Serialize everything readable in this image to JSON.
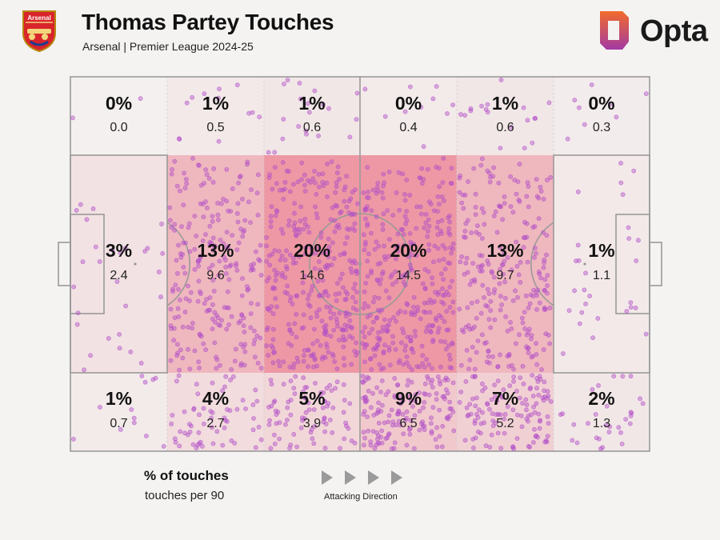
{
  "header": {
    "title": "Thomas Partey Touches",
    "subtitle": "Arsenal | Premier League 2024-25",
    "crest_text": "Arsenal",
    "brand": "Opta"
  },
  "legend": {
    "main": "% of touches",
    "sub": "touches per 90",
    "direction": "Attacking Direction"
  },
  "colors": {
    "background": "#f4f3f2",
    "pitch_line": "#9a9a9a",
    "dot": "#b24fc8",
    "heat": "#e8576a",
    "crest_red": "#d9242b",
    "brand_orange": "#f26b2b",
    "brand_purple": "#a33aa3"
  },
  "chart_data": {
    "type": "heatmap",
    "title": "Thomas Partey Touches",
    "subtitle": "Arsenal | Premier League 2024-25",
    "columns": 6,
    "rows": [
      "top-wing",
      "central",
      "bottom-wing"
    ],
    "zones": [
      [
        {
          "pct": "0%",
          "p90": "0.0"
        },
        {
          "pct": "1%",
          "p90": "0.5"
        },
        {
          "pct": "1%",
          "p90": "0.6"
        },
        {
          "pct": "0%",
          "p90": "0.4"
        },
        {
          "pct": "1%",
          "p90": "0.6"
        },
        {
          "pct": "0%",
          "p90": "0.3"
        }
      ],
      [
        {
          "pct": "3%",
          "p90": "2.4"
        },
        {
          "pct": "13%",
          "p90": "9.6"
        },
        {
          "pct": "20%",
          "p90": "14.6"
        },
        {
          "pct": "20%",
          "p90": "14.5"
        },
        {
          "pct": "13%",
          "p90": "9.7"
        },
        {
          "pct": "1%",
          "p90": "1.1"
        }
      ],
      [
        {
          "pct": "1%",
          "p90": "0.7"
        },
        {
          "pct": "4%",
          "p90": "2.7"
        },
        {
          "pct": "5%",
          "p90": "3.9"
        },
        {
          "pct": "9%",
          "p90": "6.5"
        },
        {
          "pct": "7%",
          "p90": "5.2"
        },
        {
          "pct": "2%",
          "p90": "1.3"
        }
      ]
    ],
    "intensity": [
      [
        0.02,
        0.06,
        0.07,
        0.05,
        0.07,
        0.04
      ],
      [
        0.11,
        0.38,
        0.58,
        0.58,
        0.38,
        0.06
      ],
      [
        0.05,
        0.14,
        0.18,
        0.27,
        0.22,
        0.08
      ]
    ],
    "dot_density": [
      [
        2,
        12,
        20,
        10,
        18,
        8
      ],
      [
        28,
        235,
        330,
        330,
        235,
        28
      ],
      [
        12,
        60,
        85,
        150,
        120,
        30
      ]
    ],
    "attacking_direction": "left-to-right"
  }
}
